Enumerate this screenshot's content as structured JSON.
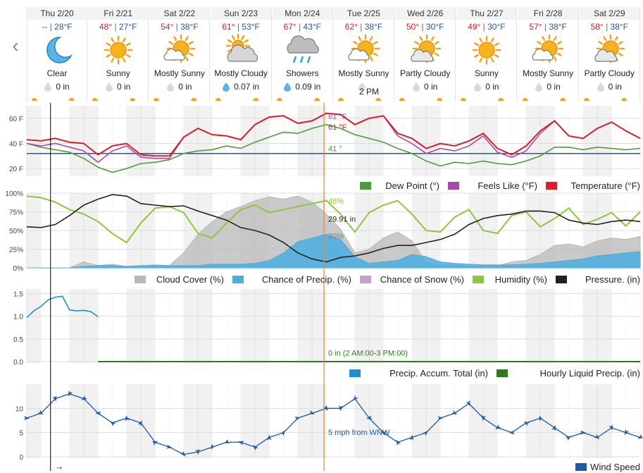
{
  "nav": {
    "prev_icon": "chevron-left-icon",
    "prev_glyph": "‹"
  },
  "days": [
    {
      "name": "Thu 2/20",
      "hi": "--",
      "lo": "28°F",
      "condition": "Clear",
      "icon": "moon-icon",
      "precip": "0 in",
      "precip_icon": "gray-drop-icon"
    },
    {
      "name": "Fri 2/21",
      "hi": "48°",
      "lo": "27°F",
      "condition": "Sunny",
      "icon": "sun-icon",
      "precip": "0 in",
      "precip_icon": "gray-drop-icon"
    },
    {
      "name": "Sat 2/22",
      "hi": "54°",
      "lo": "38°F",
      "condition": "Mostly Sunny",
      "icon": "mostly-sunny-icon",
      "precip": "0 in",
      "precip_icon": "gray-drop-icon"
    },
    {
      "name": "Sun 2/23",
      "hi": "61°",
      "lo": "53°F",
      "condition": "Mostly Cloudy",
      "icon": "mostly-cloudy-icon",
      "precip": "0.07 in",
      "precip_icon": "blue-drop-icon"
    },
    {
      "name": "Mon 2/24",
      "hi": "67°",
      "lo": "43°F",
      "condition": "Showers",
      "icon": "showers-icon",
      "precip": "0.09 in",
      "precip_icon": "blue-drop-icon"
    },
    {
      "name": "Tue 2/25",
      "hi": "62°",
      "lo": "38°F",
      "condition": "Mostly Sunny",
      "icon": "mostly-sunny-icon",
      "precip": "",
      "precip_icon": "gray-drop-icon"
    },
    {
      "name": "Wed 2/26",
      "hi": "50°",
      "lo": "30°F",
      "condition": "Partly Cloudy",
      "icon": "partly-cloudy-icon",
      "precip": "0 in",
      "precip_icon": "gray-drop-icon"
    },
    {
      "name": "Thu 2/27",
      "hi": "49°",
      "lo": "30°F",
      "condition": "Sunny",
      "icon": "sun-icon",
      "precip": "0 in",
      "precip_icon": "gray-drop-icon"
    },
    {
      "name": "Fri 2/28",
      "hi": "57°",
      "lo": "38°F",
      "condition": "Mostly Sunny",
      "icon": "mostly-sunny-icon",
      "precip": "0 in",
      "precip_icon": "gray-drop-icon"
    },
    {
      "name": "Sat 2/29",
      "hi": "58°",
      "lo": "38°F",
      "condition": "Partly Cloudy",
      "icon": "partly-cloudy-icon",
      "precip": "0 in",
      "precip_icon": "gray-drop-icon"
    }
  ],
  "cursor": {
    "time_label": "2 PM",
    "now_arrow": "→"
  },
  "colors": {
    "temperature": "#d3222a",
    "feels_like": "#a64ca6",
    "dew_point": "#4d9c3d",
    "cloud_cover": "#b8b8b8",
    "precip_chance": "#4aaee0",
    "humidity": "#8ec63f",
    "pressure": "#222222",
    "accum": "#1f8fcc",
    "hourly_precip": "#2d7a1f",
    "wind": "#1e5aa8",
    "freezing_line": "#1e5aa8",
    "cursor": "#e08a3c",
    "now_line": "#000000"
  },
  "chart_data": [
    {
      "type": "line",
      "panel": "temperature",
      "ytick_labels": [
        "20 F",
        "40 F",
        "60 F"
      ],
      "yticks": [
        20,
        40,
        60
      ],
      "ylim": [
        15,
        70
      ],
      "freezing_value": 32,
      "x_hours": [
        0,
        6,
        12,
        18,
        24,
        30,
        36,
        42,
        48,
        54,
        60,
        66,
        72,
        78,
        84,
        90,
        96,
        102,
        108,
        114,
        120,
        126,
        132,
        138,
        144,
        150,
        156,
        162,
        168,
        174,
        180,
        186,
        192,
        198,
        204,
        210,
        216,
        222,
        228,
        234,
        240,
        246,
        252,
        258
      ],
      "series": [
        {
          "name": "Temperature (°F)",
          "color_key": "temperature",
          "values": [
            43,
            42,
            44,
            41,
            40,
            31,
            38,
            40,
            31,
            30,
            30,
            45,
            52,
            47,
            46,
            43,
            55,
            61,
            62,
            56,
            58,
            64,
            63,
            55,
            60,
            62,
            48,
            44,
            36,
            40,
            38,
            42,
            48,
            36,
            31,
            38,
            50,
            58,
            46,
            44,
            52,
            57,
            50,
            44
          ]
        },
        {
          "name": "Feels Like (°F)",
          "color_key": "feels_like",
          "values": [
            40,
            38,
            40,
            37,
            34,
            25,
            34,
            38,
            29,
            28,
            28,
            45,
            52,
            47,
            46,
            43,
            55,
            61,
            62,
            56,
            58,
            64,
            63,
            55,
            60,
            62,
            46,
            40,
            32,
            36,
            34,
            38,
            46,
            33,
            29,
            34,
            48,
            58,
            46,
            44,
            52,
            57,
            50,
            44
          ]
        },
        {
          "name": "Dew Point (°)",
          "color_key": "dew_point",
          "values": [
            40,
            37,
            35,
            33,
            28,
            21,
            17,
            20,
            24,
            25,
            27,
            32,
            34,
            35,
            38,
            36,
            41,
            45,
            49,
            48,
            52,
            55,
            52,
            47,
            44,
            41,
            36,
            32,
            26,
            22,
            25,
            24,
            26,
            24,
            23,
            26,
            30,
            37,
            37,
            35,
            37,
            36,
            35,
            36
          ]
        }
      ],
      "cursor_labels": [
        "61 °F",
        "61 °F",
        "41 °"
      ]
    },
    {
      "type": "area",
      "panel": "clouds",
      "ytick_labels": [
        "0%",
        "25%",
        "50%",
        "75%",
        "100%"
      ],
      "yticks": [
        0,
        25,
        50,
        75,
        100
      ],
      "ylim": [
        0,
        100
      ],
      "x_hours": [
        0,
        6,
        12,
        18,
        24,
        30,
        36,
        42,
        48,
        54,
        60,
        66,
        72,
        78,
        84,
        90,
        96,
        102,
        108,
        114,
        120,
        126,
        132,
        138,
        144,
        150,
        156,
        162,
        168,
        174,
        180,
        186,
        192,
        198,
        204,
        210,
        216,
        222,
        228,
        234,
        240,
        246,
        252,
        258
      ],
      "series": [
        {
          "name": "Cloud Cover (%)",
          "color_key": "cloud_cover",
          "values": [
            0,
            0,
            0,
            0,
            8,
            3,
            5,
            2,
            3,
            4,
            3,
            20,
            45,
            62,
            75,
            82,
            90,
            95,
            92,
            96,
            88,
            72,
            52,
            20,
            25,
            40,
            48,
            36,
            8,
            3,
            4,
            2,
            3,
            3,
            8,
            10,
            18,
            30,
            32,
            28,
            36,
            40,
            38,
            42
          ]
        },
        {
          "name": "Chance of Precip. (%)",
          "color_key": "precip_chance",
          "values": [
            0,
            0,
            0,
            0,
            2,
            3,
            3,
            2,
            3,
            3,
            3,
            3,
            3,
            5,
            5,
            5,
            6,
            10,
            20,
            35,
            40,
            45,
            38,
            15,
            6,
            8,
            10,
            18,
            15,
            8,
            6,
            5,
            4,
            4,
            4,
            5,
            6,
            8,
            10,
            12,
            16,
            18,
            20,
            22
          ]
        },
        {
          "name": "Chance of Snow (%)",
          "color_key": "precip_chance",
          "values": []
        },
        {
          "name": "Humidity (%)",
          "color_key": "humidity",
          "values": [
            96,
            94,
            88,
            78,
            72,
            62,
            46,
            34,
            60,
            80,
            82,
            74,
            46,
            40,
            60,
            78,
            84,
            74,
            78,
            82,
            86,
            90,
            72,
            48,
            74,
            84,
            90,
            72,
            50,
            48,
            68,
            78,
            50,
            46,
            70,
            75,
            55,
            66,
            80,
            58,
            65,
            74,
            56,
            75
          ]
        },
        {
          "name": "Pressure. (in)",
          "color_key": "pressure",
          "values": [
            55,
            54,
            58,
            70,
            84,
            92,
            98,
            96,
            86,
            84,
            82,
            83,
            76,
            70,
            64,
            54,
            50,
            44,
            34,
            20,
            12,
            8,
            14,
            16,
            20,
            26,
            30,
            30,
            34,
            38,
            45,
            58,
            66,
            70,
            72,
            76,
            76,
            74,
            64,
            60,
            58,
            62,
            64,
            62
          ]
        }
      ],
      "cursor_labels": [
        "48%",
        "29.91 in",
        "20%",
        "0%"
      ]
    },
    {
      "type": "line",
      "panel": "precip",
      "ytick_labels": [
        "0.0",
        "0.5",
        "1.0",
        "1.5"
      ],
      "yticks": [
        0,
        0.5,
        1.0,
        1.5
      ],
      "ylim": [
        0,
        1.6
      ],
      "x_hours": [
        0,
        3,
        6,
        9,
        12,
        15,
        18,
        21,
        24,
        27,
        30
      ],
      "series": [
        {
          "name": "Precip. Accum. Total (in)",
          "color_key": "accum",
          "values": [
            0.97,
            1.12,
            1.22,
            1.36,
            1.42,
            1.44,
            1.14,
            1.12,
            1.13,
            1.1,
            0.99
          ]
        },
        {
          "name": "Hourly Liquid Precip. (in)",
          "color_key": "hourly_precip",
          "values": [
            0,
            0,
            0,
            0,
            0,
            0,
            0,
            0,
            0,
            0,
            0
          ]
        }
      ],
      "note": "0 in (2 AM:00-3 PM:00)"
    },
    {
      "type": "line",
      "panel": "wind",
      "ytick_labels": [
        "0",
        "5",
        "10"
      ],
      "yticks": [
        0,
        5,
        10
      ],
      "ylim": [
        0,
        15
      ],
      "x_hours": [
        0,
        6,
        12,
        18,
        24,
        30,
        36,
        42,
        48,
        54,
        60,
        66,
        72,
        78,
        84,
        90,
        96,
        102,
        108,
        114,
        120,
        126,
        132,
        138,
        144,
        150,
        156,
        162,
        168,
        174,
        180,
        186,
        192,
        198,
        204,
        210,
        216,
        222,
        228,
        234,
        240,
        246,
        252,
        258
      ],
      "series": [
        {
          "name": "Wind Speed",
          "color_key": "wind",
          "values": [
            8,
            9,
            12,
            13,
            12,
            9,
            7,
            8,
            7,
            3,
            2,
            0.5,
            1,
            2,
            3,
            3,
            2,
            4,
            5,
            8,
            9,
            10,
            10,
            12,
            8,
            5,
            3,
            4,
            5,
            8,
            9,
            11,
            8,
            6,
            5,
            7,
            8,
            6,
            4,
            5,
            4,
            6,
            5,
            4
          ]
        }
      ],
      "cursor_label": "5 mph from WNW"
    }
  ],
  "legends": {
    "temp": [
      "Dew Point (°)",
      "Feels Like (°F)",
      "Temperature (°F)"
    ],
    "clouds": [
      "Cloud Cover (%)",
      "Chance of Precip. (%)",
      "Chance of Snow (%)",
      "Humidity (%)",
      "Pressure. (in)"
    ],
    "precip": [
      "Precip. Accum. Total (in)",
      "Hourly Liquid Precip. (in)"
    ],
    "wind": [
      "Wind Speed"
    ]
  }
}
